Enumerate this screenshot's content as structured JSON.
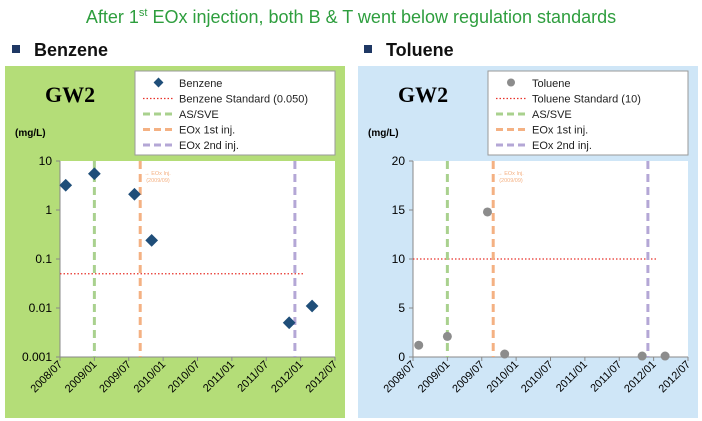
{
  "headline": {
    "prefix": "After 1",
    "sup": "st",
    "suffix": " EOx injection, both B & T went below regulation standards"
  },
  "sections": [
    {
      "title": "Benzene"
    },
    {
      "title": "Toluene"
    }
  ],
  "colors": {
    "left_panel_bg": "#b4dd78",
    "right_panel_bg": "#cfe6f7",
    "benzene_marker": "#1f4e79",
    "toluene_marker": "#8c8c8c",
    "standard_line": "#e8322a",
    "as_sve": "#a9d18e",
    "eox1": "#f4b183",
    "eox2": "#b4a7d6",
    "title_green": "#2e9e3e"
  },
  "chart_data": [
    {
      "type": "scatter",
      "panel_label": "GW2",
      "ylabel": "(mg/L)",
      "yscale": "log",
      "ylim": [
        0.001,
        10
      ],
      "yticks": [
        "10",
        "1",
        "0.1",
        "0.01",
        "0.001"
      ],
      "xlim": [
        "2008/07",
        "2012/07"
      ],
      "xticks": [
        "2008/07",
        "2009/01",
        "2009/07",
        "2010/01",
        "2010/07",
        "2011/01",
        "2011/07",
        "2012/01",
        "2012/07"
      ],
      "grid": false,
      "legend_position": "top-right",
      "legend": [
        {
          "label": "Benzene",
          "kind": "marker"
        },
        {
          "label": "Benzene Standard (0.050)",
          "kind": "standard"
        },
        {
          "label": "AS/SVE",
          "kind": "as_sve"
        },
        {
          "label": "EOx 1st inj.",
          "kind": "eox1"
        },
        {
          "label": "EOx 2nd inj.",
          "kind": "eox2"
        }
      ],
      "series": [
        {
          "name": "Benzene",
          "points": [
            {
              "x": "2008/08",
              "y": 3.2
            },
            {
              "x": "2009/01",
              "y": 5.5
            },
            {
              "x": "2009/08",
              "y": 2.1
            },
            {
              "x": "2009/11",
              "y": 0.24
            },
            {
              "x": "2011/11",
              "y": 0.005
            },
            {
              "x": "2012/03",
              "y": 0.011
            }
          ]
        }
      ],
      "standard": 0.05,
      "vlines": [
        {
          "x": "2009/01",
          "kind": "as_sve"
        },
        {
          "x": "2009/09",
          "kind": "eox1"
        },
        {
          "x": "2011/12",
          "kind": "eox2"
        }
      ],
      "annotation": {
        "text": [
          "EOx Inj.",
          "(2009/09)"
        ],
        "x": "2009/09"
      }
    },
    {
      "type": "scatter",
      "panel_label": "GW2",
      "ylabel": "(mg/L)",
      "yscale": "linear",
      "ylim": [
        0,
        20
      ],
      "yticks": [
        "20",
        "15",
        "10",
        "5",
        "0"
      ],
      "xlim": [
        "2008/07",
        "2012/07"
      ],
      "xticks": [
        "2008/07",
        "2009/01",
        "2009/07",
        "2010/01",
        "2010/07",
        "2011/01",
        "2011/07",
        "2012/01",
        "2012/07"
      ],
      "grid": false,
      "legend_position": "top-right",
      "legend": [
        {
          "label": "Toluene",
          "kind": "marker"
        },
        {
          "label": "Toluene Standard (10)",
          "kind": "standard"
        },
        {
          "label": "AS/SVE",
          "kind": "as_sve"
        },
        {
          "label": "EOx 1st inj.",
          "kind": "eox1"
        },
        {
          "label": "EOx 2nd inj.",
          "kind": "eox2"
        }
      ],
      "series": [
        {
          "name": "Toluene",
          "points": [
            {
              "x": "2008/08",
              "y": 1.2
            },
            {
              "x": "2009/01",
              "y": 2.1
            },
            {
              "x": "2009/08",
              "y": 14.8
            },
            {
              "x": "2009/11",
              "y": 0.3
            },
            {
              "x": "2011/11",
              "y": 0.1
            },
            {
              "x": "2012/03",
              "y": 0.1
            }
          ]
        }
      ],
      "standard": 10,
      "vlines": [
        {
          "x": "2009/01",
          "kind": "as_sve"
        },
        {
          "x": "2009/09",
          "kind": "eox1"
        },
        {
          "x": "2011/12",
          "kind": "eox2"
        }
      ],
      "annotation": {
        "text": [
          "EOx Inj.",
          "(2009/09)"
        ],
        "x": "2009/09"
      }
    }
  ]
}
